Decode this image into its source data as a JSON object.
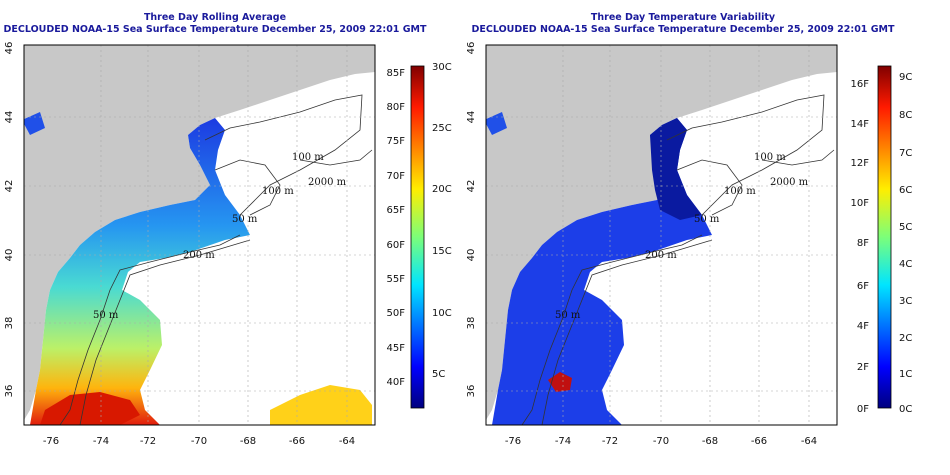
{
  "colors": {
    "land": "#c8c8c8",
    "ocean_nodata": "#ffffff",
    "title": "#1a1a9c",
    "contour": "#333333",
    "grid": "#aaaaaa"
  },
  "panels": [
    {
      "title1": "Three Day Rolling Average",
      "title2": "DECLOUDED NOAA-15 Sea Surface Temperature December 25, 2009 22:01 GMT",
      "x_ticks": [
        "-76",
        "-74",
        "-72",
        "-70",
        "-68",
        "-66",
        "-64"
      ],
      "y_ticks": [
        "36",
        "38",
        "40",
        "42",
        "44",
        "46"
      ],
      "contour_labels": [
        "100 m",
        "2000 m",
        "100 m",
        "50 m",
        "200 m",
        "50 m"
      ],
      "colorbar": {
        "right_labels": [
          "30C",
          "25C",
          "20C",
          "15C",
          "10C",
          "5C"
        ],
        "left_labels": [
          "85F",
          "80F",
          "75F",
          "70F",
          "65F",
          "60F",
          "55F",
          "50F",
          "45F",
          "40F"
        ]
      }
    },
    {
      "title1": "Three Day Temperature Variability",
      "title2": "DECLOUDED NOAA-15 Sea Surface Temperature December 25, 2009 22:01 GMT",
      "x_ticks": [
        "-76",
        "-74",
        "-72",
        "-70",
        "-68",
        "-66",
        "-64"
      ],
      "y_ticks": [
        "36",
        "38",
        "40",
        "42",
        "44",
        "46"
      ],
      "contour_labels": [
        "100 m",
        "2000 m",
        "100 m",
        "50 m",
        "200 m",
        "50 m"
      ],
      "colorbar": {
        "right_labels": [
          "9C",
          "8C",
          "7C",
          "6C",
          "5C",
          "4C",
          "3C",
          "2C",
          "1C",
          "0C"
        ],
        "left_labels": [
          "16F",
          "14F",
          "12F",
          "10F",
          "8F",
          "6F",
          "4F",
          "2F",
          "0F"
        ]
      }
    }
  ]
}
